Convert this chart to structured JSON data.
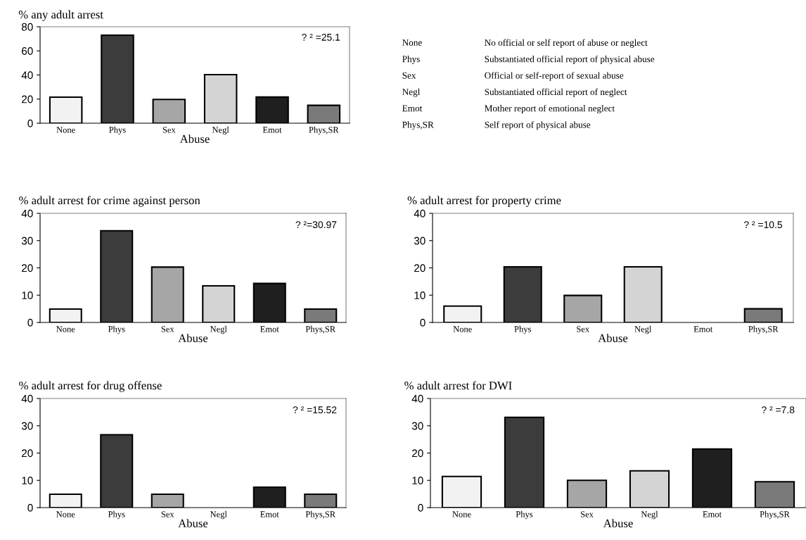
{
  "chart_data": [
    {
      "type": "bar",
      "title": "% any adult arrest",
      "xlabel": "Abuse",
      "categories": [
        "None",
        "Phys",
        "Sex",
        "Negl",
        "Emot",
        "Phys,SR"
      ],
      "values": [
        21.6,
        73,
        19.7,
        40.3,
        21.7,
        14.8
      ],
      "colors": [
        "#f2f2f2",
        "#3c3c3c",
        "#a6a6a6",
        "#d4d4d4",
        "#1f1f1f",
        "#7a7a7a"
      ],
      "ylim": [
        0,
        80
      ],
      "yticks": [
        0,
        20,
        40,
        60,
        80
      ],
      "annotations": [
        "? ² =25.1"
      ]
    },
    {
      "type": "other",
      "annotations": [
        "None",
        "No official or self report of abuse or neglect",
        "Phys",
        "Substantiated official report of physical abuse",
        "Sex",
        "Official or self-report of sexual abuse",
        "Negl",
        "Substantiated official report of neglect",
        "Emot",
        "Mother report of emotional neglect",
        "Phys,SR",
        "Self report of physical abuse"
      ]
    },
    {
      "type": "bar",
      "title": "% adult arrest for crime against person",
      "xlabel": "Abuse",
      "categories": [
        "None",
        "Phys",
        "Sex",
        "Negl",
        "Emot",
        "Phys,SR"
      ],
      "values": [
        4.9,
        33.6,
        20.3,
        13.4,
        14.3,
        4.9
      ],
      "colors": [
        "#f2f2f2",
        "#3c3c3c",
        "#a6a6a6",
        "#d4d4d4",
        "#1f1f1f",
        "#7a7a7a"
      ],
      "ylim": [
        0,
        40
      ],
      "yticks": [
        0,
        10,
        20,
        30,
        40
      ],
      "annotations": [
        "? ²=30.97"
      ]
    },
    {
      "type": "bar",
      "title": "% adult arrest for property crime",
      "xlabel": "Abuse",
      "categories": [
        "None",
        "Phys",
        "Sex",
        "Negl",
        "Emot",
        "Phys,SR"
      ],
      "values": [
        6.0,
        20.4,
        9.9,
        20.4,
        null,
        5.0
      ],
      "colors": [
        "#f2f2f2",
        "#3c3c3c",
        "#a6a6a6",
        "#d4d4d4",
        "#1f1f1f",
        "#7a7a7a"
      ],
      "ylim": [
        0,
        40
      ],
      "yticks": [
        0,
        10,
        20,
        30,
        40
      ],
      "annotations": [
        "? ² =10.5"
      ]
    },
    {
      "type": "bar",
      "title": "% adult arrest for drug offense",
      "xlabel": "Abuse",
      "categories": [
        "None",
        "Phys",
        "Sex",
        "Negl",
        "Emot",
        "Phys,SR"
      ],
      "values": [
        4.9,
        26.7,
        4.9,
        null,
        7.5,
        4.9
      ],
      "colors": [
        "#f2f2f2",
        "#3c3c3c",
        "#a6a6a6",
        "#d4d4d4",
        "#1f1f1f",
        "#7a7a7a"
      ],
      "ylim": [
        0,
        40
      ],
      "yticks": [
        0,
        10,
        20,
        30,
        40
      ],
      "annotations": [
        "? ² =15.52"
      ]
    },
    {
      "type": "bar",
      "title": "% adult arrest for DWI",
      "xlabel": "Abuse",
      "categories": [
        "None",
        "Phys",
        "Sex",
        "Negl",
        "Emot",
        "Phys,SR"
      ],
      "values": [
        11.4,
        33.1,
        10.0,
        13.5,
        21.5,
        9.5
      ],
      "colors": [
        "#f2f2f2",
        "#3c3c3c",
        "#a6a6a6",
        "#d4d4d4",
        "#1f1f1f",
        "#7a7a7a"
      ],
      "ylim": [
        0,
        40
      ],
      "yticks": [
        0,
        10,
        20,
        30,
        40
      ],
      "annotations": [
        "? ² =7.8"
      ]
    }
  ]
}
